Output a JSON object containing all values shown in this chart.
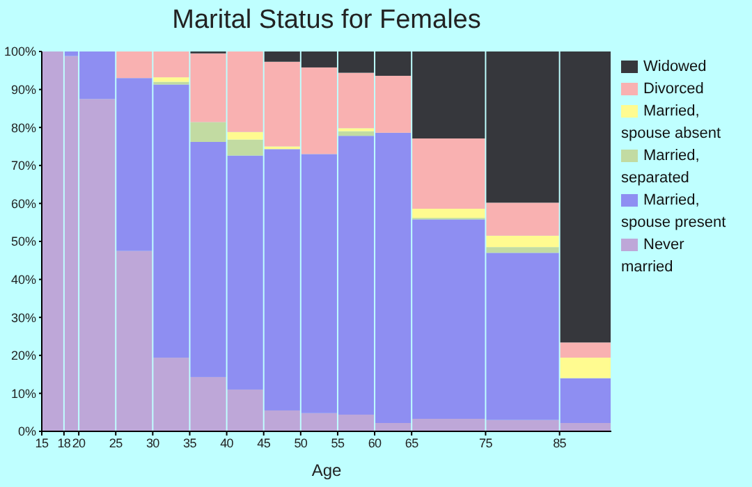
{
  "chart_data": {
    "type": "bar",
    "title": "Marital Status for Females",
    "xlabel": "Age",
    "stacked": true,
    "x": [
      16.5,
      19,
      22.5,
      27.5,
      32.5,
      37.5,
      42.5,
      47.5,
      52.5,
      57.5,
      62.5,
      70,
      80,
      88.5
    ],
    "xlim": [
      15,
      92
    ],
    "xticks": [
      15,
      18,
      20,
      25,
      30,
      35,
      40,
      45,
      50,
      55,
      60,
      65,
      75,
      85
    ],
    "ylim": [
      0,
      100
    ],
    "yticks": [
      {
        "value": 0,
        "label": "0%"
      },
      {
        "value": 10,
        "label": "10%"
      },
      {
        "value": 20,
        "label": "20%"
      },
      {
        "value": 30,
        "label": "30%"
      },
      {
        "value": 40,
        "label": "40%"
      },
      {
        "value": 50,
        "label": "50%"
      },
      {
        "value": 60,
        "label": "60%"
      },
      {
        "value": 70,
        "label": "70%"
      },
      {
        "value": 80,
        "label": "80%"
      },
      {
        "value": 90,
        "label": "90%"
      },
      {
        "value": 100,
        "label": "100%"
      }
    ],
    "legend": "right",
    "series": [
      {
        "name": "Never married",
        "color": "#bea7d8",
        "values": [
          100,
          98.8,
          87.5,
          47.5,
          19.4,
          14.3,
          11,
          5.5,
          4.8,
          4.4,
          2.2,
          3.3,
          3.0,
          2.2
        ]
      },
      {
        "name": "Married, spouse present",
        "color": "#8e8ef2",
        "values": [
          0,
          1.2,
          12.5,
          45.5,
          71.9,
          61.9,
          61.6,
          68.8,
          68.2,
          73.4,
          76.4,
          52.5,
          44,
          11.8
        ]
      },
      {
        "name": "Married, separated",
        "color": "#c2dba2",
        "values": [
          0,
          0,
          0,
          0,
          0.7,
          5.2,
          4.2,
          0,
          0,
          1.2,
          0,
          0.4,
          1.5,
          0
        ]
      },
      {
        "name": "Married, spouse absent",
        "color": "#fffb90",
        "values": [
          0,
          0,
          0,
          0,
          1.2,
          0,
          2,
          0.7,
          0,
          0.8,
          0,
          2.4,
          3,
          5.4
        ]
      },
      {
        "name": "Divorced",
        "color": "#f9b1b1",
        "values": [
          0,
          0,
          0,
          7,
          6.8,
          18.1,
          21.2,
          22.3,
          22.8,
          14.6,
          15,
          18.5,
          8.7,
          4
        ]
      },
      {
        "name": "Widowed",
        "color": "#36373c",
        "values": [
          0,
          0,
          0,
          0,
          0,
          0.5,
          0,
          2.7,
          4.2,
          5.6,
          6.4,
          22.9,
          39.8,
          76.6
        ]
      }
    ]
  }
}
